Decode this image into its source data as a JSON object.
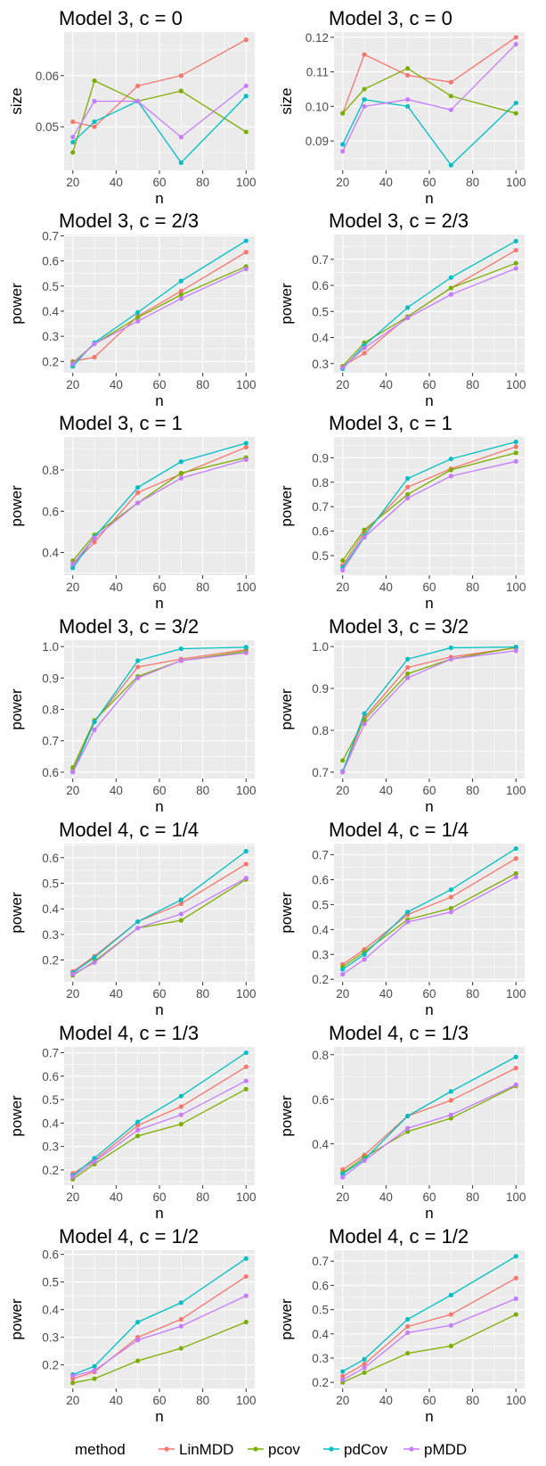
{
  "chart_data": [
    {
      "type": "line",
      "title": "Model 3, c = 0",
      "xlabel": "n",
      "ylabel": "size",
      "x": [
        20,
        30,
        50,
        70,
        100
      ],
      "xlim": [
        16,
        104
      ],
      "ylim": [
        0.0415,
        0.0685
      ],
      "xticks": [
        20,
        40,
        60,
        80,
        100
      ],
      "yticks": [
        0.05,
        0.06
      ],
      "ytick_labels": [
        "0.05",
        "0.06"
      ],
      "grid": true,
      "series": [
        {
          "name": "LinMDD",
          "values": [
            0.051,
            0.05,
            0.058,
            0.06,
            0.067
          ]
        },
        {
          "name": "pcov",
          "values": [
            0.045,
            0.059,
            0.055,
            0.057,
            0.049
          ]
        },
        {
          "name": "pdCov",
          "values": [
            0.047,
            0.051,
            0.055,
            0.043,
            0.056
          ]
        },
        {
          "name": "pMDD",
          "values": [
            0.048,
            0.055,
            0.055,
            0.048,
            0.058
          ]
        }
      ]
    },
    {
      "type": "line",
      "title": "Model 3, c = 0",
      "xlabel": "n",
      "ylabel": "size",
      "x": [
        20,
        30,
        50,
        70,
        100
      ],
      "xlim": [
        16,
        104
      ],
      "ylim": [
        0.0815,
        0.1215
      ],
      "xticks": [
        20,
        40,
        60,
        80,
        100
      ],
      "yticks": [
        0.09,
        0.1,
        0.11,
        0.12
      ],
      "ytick_labels": [
        "0.09",
        "0.10",
        "0.11",
        "0.12"
      ],
      "grid": true,
      "series": [
        {
          "name": "LinMDD",
          "values": [
            0.098,
            0.115,
            0.109,
            0.107,
            0.12
          ]
        },
        {
          "name": "pcov",
          "values": [
            0.098,
            0.105,
            0.111,
            0.103,
            0.098
          ]
        },
        {
          "name": "pdCov",
          "values": [
            0.089,
            0.102,
            0.1,
            0.083,
            0.101
          ]
        },
        {
          "name": "pMDD",
          "values": [
            0.087,
            0.1,
            0.102,
            0.099,
            0.118
          ]
        }
      ]
    },
    {
      "type": "line",
      "title": "Model 3, c = 2/3",
      "xlabel": "n",
      "ylabel": "power",
      "x": [
        20,
        30,
        50,
        70,
        100
      ],
      "xlim": [
        16,
        104
      ],
      "ylim": [
        0.155,
        0.705
      ],
      "xticks": [
        20,
        40,
        60,
        80,
        100
      ],
      "yticks": [
        0.2,
        0.3,
        0.4,
        0.5,
        0.6,
        0.7
      ],
      "ytick_labels": [
        "0.2",
        "0.3",
        "0.4",
        "0.5",
        "0.6",
        "0.7"
      ],
      "grid": true,
      "series": [
        {
          "name": "LinMDD",
          "values": [
            0.2,
            0.217,
            0.38,
            0.48,
            0.635
          ]
        },
        {
          "name": "pcov",
          "values": [
            0.195,
            0.27,
            0.375,
            0.465,
            0.578
          ]
        },
        {
          "name": "pdCov",
          "values": [
            0.18,
            0.275,
            0.395,
            0.52,
            0.68
          ]
        },
        {
          "name": "pMDD",
          "values": [
            0.19,
            0.27,
            0.36,
            0.45,
            0.568
          ]
        }
      ]
    },
    {
      "type": "line",
      "title": "Model 3, c = 2/3",
      "xlabel": "n",
      "ylabel": "power",
      "x": [
        20,
        30,
        50,
        70,
        100
      ],
      "xlim": [
        16,
        104
      ],
      "ylim": [
        0.265,
        0.795
      ],
      "xticks": [
        20,
        40,
        60,
        80,
        100
      ],
      "yticks": [
        0.3,
        0.4,
        0.5,
        0.6,
        0.7
      ],
      "ytick_labels": [
        "0.3",
        "0.4",
        "0.5",
        "0.6",
        "0.7"
      ],
      "grid": true,
      "series": [
        {
          "name": "LinMDD",
          "values": [
            0.29,
            0.34,
            0.48,
            0.59,
            0.735
          ]
        },
        {
          "name": "pcov",
          "values": [
            0.29,
            0.38,
            0.48,
            0.59,
            0.685
          ]
        },
        {
          "name": "pdCov",
          "values": [
            0.28,
            0.37,
            0.515,
            0.63,
            0.77
          ]
        },
        {
          "name": "pMDD",
          "values": [
            0.285,
            0.36,
            0.475,
            0.565,
            0.665
          ]
        }
      ]
    },
    {
      "type": "line",
      "title": "Model 3, c = 1",
      "xlabel": "n",
      "ylabel": "power",
      "x": [
        20,
        30,
        50,
        70,
        100
      ],
      "xlim": [
        16,
        104
      ],
      "ylim": [
        0.29,
        0.96
      ],
      "xticks": [
        20,
        40,
        60,
        80,
        100
      ],
      "yticks": [
        0.4,
        0.6,
        0.8
      ],
      "ytick_labels": [
        "0.4",
        "0.6",
        "0.8"
      ],
      "grid": true,
      "series": [
        {
          "name": "LinMDD",
          "values": [
            0.34,
            0.45,
            0.69,
            0.78,
            0.91
          ]
        },
        {
          "name": "pcov",
          "values": [
            0.36,
            0.485,
            0.64,
            0.785,
            0.86
          ]
        },
        {
          "name": "pdCov",
          "values": [
            0.325,
            0.475,
            0.715,
            0.84,
            0.93
          ]
        },
        {
          "name": "pMDD",
          "values": [
            0.345,
            0.47,
            0.64,
            0.76,
            0.85
          ]
        }
      ]
    },
    {
      "type": "line",
      "title": "Model 3, c = 1",
      "xlabel": "n",
      "ylabel": "power",
      "x": [
        20,
        30,
        50,
        70,
        100
      ],
      "xlim": [
        16,
        104
      ],
      "ylim": [
        0.42,
        0.985
      ],
      "xticks": [
        20,
        40,
        60,
        80,
        100
      ],
      "yticks": [
        0.5,
        0.6,
        0.7,
        0.8,
        0.9
      ],
      "ytick_labels": [
        "0.5",
        "0.6",
        "0.7",
        "0.8",
        "0.9"
      ],
      "grid": true,
      "series": [
        {
          "name": "LinMDD",
          "values": [
            0.46,
            0.595,
            0.78,
            0.855,
            0.945
          ]
        },
        {
          "name": "pcov",
          "values": [
            0.48,
            0.605,
            0.75,
            0.85,
            0.92
          ]
        },
        {
          "name": "pdCov",
          "values": [
            0.45,
            0.58,
            0.815,
            0.895,
            0.965
          ]
        },
        {
          "name": "pMDD",
          "values": [
            0.44,
            0.575,
            0.735,
            0.825,
            0.885
          ]
        }
      ]
    },
    {
      "type": "line",
      "title": "Model 3, c = 3/2",
      "xlabel": "n",
      "ylabel": "power",
      "x": [
        20,
        30,
        50,
        70,
        100
      ],
      "xlim": [
        16,
        104
      ],
      "ylim": [
        0.58,
        1.02
      ],
      "xticks": [
        20,
        40,
        60,
        80,
        100
      ],
      "yticks": [
        0.6,
        0.7,
        0.8,
        0.9,
        1.0
      ],
      "ytick_labels": [
        "0.6",
        "0.7",
        "0.8",
        "0.9",
        "1.0"
      ],
      "grid": true,
      "series": [
        {
          "name": "LinMDD",
          "values": [
            0.605,
            0.76,
            0.935,
            0.96,
            0.99
          ]
        },
        {
          "name": "pcov",
          "values": [
            0.615,
            0.765,
            0.905,
            0.955,
            0.985
          ]
        },
        {
          "name": "pdCov",
          "values": [
            0.6,
            0.76,
            0.955,
            0.993,
            0.998
          ]
        },
        {
          "name": "pMDD",
          "values": [
            0.6,
            0.735,
            0.9,
            0.955,
            0.98
          ]
        }
      ]
    },
    {
      "type": "line",
      "title": "Model 3, c = 3/2",
      "xlabel": "n",
      "ylabel": "power",
      "x": [
        20,
        30,
        50,
        70,
        100
      ],
      "xlim": [
        16,
        104
      ],
      "ylim": [
        0.685,
        1.015
      ],
      "xticks": [
        20,
        40,
        60,
        80,
        100
      ],
      "yticks": [
        0.7,
        0.8,
        0.9,
        1.0
      ],
      "ytick_labels": [
        "0.7",
        "0.8",
        "0.9",
        "1.0"
      ],
      "grid": true,
      "series": [
        {
          "name": "LinMDD",
          "values": [
            0.7,
            0.83,
            0.95,
            0.975,
            0.997
          ]
        },
        {
          "name": "pcov",
          "values": [
            0.728,
            0.825,
            0.935,
            0.97,
            0.998
          ]
        },
        {
          "name": "pdCov",
          "values": [
            0.702,
            0.84,
            0.97,
            0.997,
            0.999
          ]
        },
        {
          "name": "pMDD",
          "values": [
            0.7,
            0.815,
            0.925,
            0.97,
            0.99
          ]
        }
      ]
    },
    {
      "type": "line",
      "title": "Model 4, c = 1/4",
      "xlabel": "n",
      "ylabel": "power",
      "x": [
        20,
        30,
        50,
        70,
        100
      ],
      "xlim": [
        16,
        104
      ],
      "ylim": [
        0.115,
        0.655
      ],
      "xticks": [
        20,
        40,
        60,
        80,
        100
      ],
      "yticks": [
        0.2,
        0.3,
        0.4,
        0.5,
        0.6
      ],
      "ytick_labels": [
        "0.2",
        "0.3",
        "0.4",
        "0.5",
        "0.6"
      ],
      "grid": true,
      "series": [
        {
          "name": "LinMDD",
          "values": [
            0.155,
            0.215,
            0.35,
            0.42,
            0.575
          ]
        },
        {
          "name": "pcov",
          "values": [
            0.14,
            0.195,
            0.325,
            0.355,
            0.515
          ]
        },
        {
          "name": "pdCov",
          "values": [
            0.15,
            0.21,
            0.35,
            0.435,
            0.625
          ]
        },
        {
          "name": "pMDD",
          "values": [
            0.145,
            0.19,
            0.325,
            0.38,
            0.52
          ]
        }
      ]
    },
    {
      "type": "line",
      "title": "Model 4, c = 1/4",
      "xlabel": "n",
      "ylabel": "power",
      "x": [
        20,
        30,
        50,
        70,
        100
      ],
      "xlim": [
        16,
        104
      ],
      "ylim": [
        0.19,
        0.745
      ],
      "xticks": [
        20,
        40,
        60,
        80,
        100
      ],
      "yticks": [
        0.2,
        0.3,
        0.4,
        0.5,
        0.6,
        0.7
      ],
      "ytick_labels": [
        "0.2",
        "0.3",
        "0.4",
        "0.5",
        "0.6",
        "0.7"
      ],
      "grid": true,
      "series": [
        {
          "name": "LinMDD",
          "values": [
            0.26,
            0.32,
            0.46,
            0.53,
            0.685
          ]
        },
        {
          "name": "pcov",
          "values": [
            0.25,
            0.31,
            0.44,
            0.485,
            0.625
          ]
        },
        {
          "name": "pdCov",
          "values": [
            0.24,
            0.3,
            0.47,
            0.56,
            0.725
          ]
        },
        {
          "name": "pMDD",
          "values": [
            0.22,
            0.28,
            0.43,
            0.47,
            0.61
          ]
        }
      ]
    },
    {
      "type": "line",
      "title": "Model 4, c = 1/3",
      "xlabel": "n",
      "ylabel": "power",
      "x": [
        20,
        30,
        50,
        70,
        100
      ],
      "xlim": [
        16,
        104
      ],
      "ylim": [
        0.135,
        0.725
      ],
      "xticks": [
        20,
        40,
        60,
        80,
        100
      ],
      "yticks": [
        0.2,
        0.3,
        0.4,
        0.5,
        0.6,
        0.7
      ],
      "ytick_labels": [
        "0.2",
        "0.3",
        "0.4",
        "0.5",
        "0.6",
        "0.7"
      ],
      "grid": true,
      "series": [
        {
          "name": "LinMDD",
          "values": [
            0.185,
            0.24,
            0.39,
            0.47,
            0.64
          ]
        },
        {
          "name": "pcov",
          "values": [
            0.16,
            0.225,
            0.345,
            0.395,
            0.545
          ]
        },
        {
          "name": "pdCov",
          "values": [
            0.175,
            0.25,
            0.405,
            0.515,
            0.7
          ]
        },
        {
          "name": "pMDD",
          "values": [
            0.17,
            0.235,
            0.37,
            0.435,
            0.58
          ]
        }
      ]
    },
    {
      "type": "line",
      "title": "Model 4, c = 1/3",
      "xlabel": "n",
      "ylabel": "power",
      "x": [
        20,
        30,
        50,
        70,
        100
      ],
      "xlim": [
        16,
        104
      ],
      "ylim": [
        0.215,
        0.835
      ],
      "xticks": [
        20,
        40,
        60,
        80,
        100
      ],
      "yticks": [
        0.4,
        0.6,
        0.8
      ],
      "ytick_labels": [
        "0.4",
        "0.6",
        "0.8"
      ],
      "grid": true,
      "series": [
        {
          "name": "LinMDD",
          "values": [
            0.285,
            0.35,
            0.525,
            0.595,
            0.74
          ]
        },
        {
          "name": "pcov",
          "values": [
            0.27,
            0.34,
            0.455,
            0.515,
            0.66
          ]
        },
        {
          "name": "pdCov",
          "values": [
            0.265,
            0.33,
            0.525,
            0.635,
            0.79
          ]
        },
        {
          "name": "pMDD",
          "values": [
            0.25,
            0.325,
            0.47,
            0.53,
            0.665
          ]
        }
      ]
    },
    {
      "type": "line",
      "title": "Model 4, c = 1/2",
      "xlabel": "n",
      "ylabel": "power",
      "x": [
        20,
        30,
        50,
        70,
        100
      ],
      "xlim": [
        16,
        104
      ],
      "ylim": [
        0.115,
        0.615
      ],
      "xticks": [
        20,
        40,
        60,
        80,
        100
      ],
      "yticks": [
        0.2,
        0.3,
        0.4,
        0.5,
        0.6
      ],
      "ytick_labels": [
        "0.2",
        "0.3",
        "0.4",
        "0.5",
        "0.6"
      ],
      "grid": true,
      "series": [
        {
          "name": "LinMDD",
          "values": [
            0.15,
            0.175,
            0.3,
            0.365,
            0.52
          ]
        },
        {
          "name": "pcov",
          "values": [
            0.135,
            0.15,
            0.215,
            0.26,
            0.355
          ]
        },
        {
          "name": "pdCov",
          "values": [
            0.165,
            0.195,
            0.355,
            0.425,
            0.585
          ]
        },
        {
          "name": "pMDD",
          "values": [
            0.16,
            0.18,
            0.29,
            0.34,
            0.45
          ]
        }
      ]
    },
    {
      "type": "line",
      "title": "Model 4, c = 1/2",
      "xlabel": "n",
      "ylabel": "power",
      "x": [
        20,
        30,
        50,
        70,
        100
      ],
      "xlim": [
        16,
        104
      ],
      "ylim": [
        0.175,
        0.745
      ],
      "xticks": [
        20,
        40,
        60,
        80,
        100
      ],
      "yticks": [
        0.2,
        0.3,
        0.4,
        0.5,
        0.6,
        0.7
      ],
      "ytick_labels": [
        "0.2",
        "0.3",
        "0.4",
        "0.5",
        "0.6",
        "0.7"
      ],
      "grid": true,
      "series": [
        {
          "name": "LinMDD",
          "values": [
            0.225,
            0.275,
            0.43,
            0.48,
            0.63
          ]
        },
        {
          "name": "pcov",
          "values": [
            0.2,
            0.24,
            0.32,
            0.35,
            0.48
          ]
        },
        {
          "name": "pdCov",
          "values": [
            0.245,
            0.295,
            0.46,
            0.56,
            0.72
          ]
        },
        {
          "name": "pMDD",
          "values": [
            0.21,
            0.26,
            0.405,
            0.435,
            0.545
          ]
        }
      ]
    }
  ],
  "legend": {
    "title": "method",
    "placement": "bottom",
    "items": [
      {
        "label": "LinMDD",
        "color": "#F8766D"
      },
      {
        "label": "pcov",
        "color": "#7CAE00"
      },
      {
        "label": "pdCov",
        "color": "#00BFC4"
      },
      {
        "label": "pMDD",
        "color": "#C77CFF"
      }
    ]
  },
  "style": {
    "panel_background": "#EBEBEB",
    "grid_color": "#FFFFFF"
  }
}
